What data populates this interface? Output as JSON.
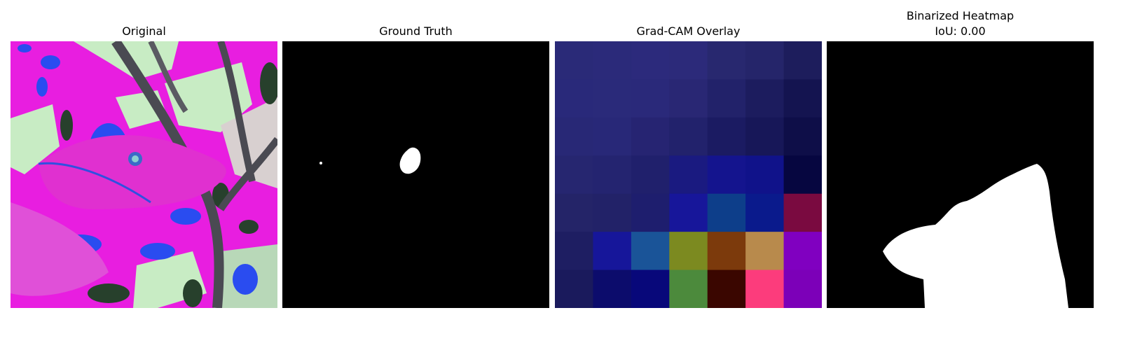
{
  "panels": [
    {
      "title": "Original"
    },
    {
      "title": "Ground Truth"
    },
    {
      "title": "Grad-CAM Overlay"
    },
    {
      "title": "Binarized Heatmap",
      "subtitle": "IoU: 0.00"
    }
  ],
  "colors": {
    "magenta": "#e81ee0",
    "pale_green": "#c8ecc4",
    "blue": "#2a4cf0",
    "dark_green": "#27402c",
    "branch": "#4a4a52",
    "mask_white": "#ffffff",
    "mask_black": "#000000"
  },
  "gradcam_grid": [
    [
      "#2a2a78",
      "#2b2a7a",
      "#2c2a7c",
      "#2c2a7a",
      "#28286f",
      "#25256a",
      "#1d1d5c"
    ],
    [
      "#29297a",
      "#2a2a7a",
      "#2a297a",
      "#292774",
      "#22226a",
      "#1c1c5e",
      "#141450"
    ],
    [
      "#282876",
      "#282878",
      "#262472",
      "#22226c",
      "#1b1b62",
      "#171758",
      "#0e0e48"
    ],
    [
      "#262670",
      "#242470",
      "#20206c",
      "#1a1a80",
      "#14148e",
      "#10128a",
      "#060640"
    ],
    [
      "#242468",
      "#222268",
      "#1e1e6e",
      "#17169a",
      "#0d3e8a",
      "#0a1a8c",
      "#7a0a40"
    ],
    [
      "#1e1e62",
      "#16169a",
      "#1a5498",
      "#7c8a20",
      "#7c3a0c",
      "#b88a4c",
      "#8000c0"
    ],
    [
      "#1a1a5c",
      "#0c0c6c",
      "#08087a",
      "#4c8a3c",
      "#3a0600",
      "#fc3c7c",
      "#7c00b8"
    ]
  ]
}
